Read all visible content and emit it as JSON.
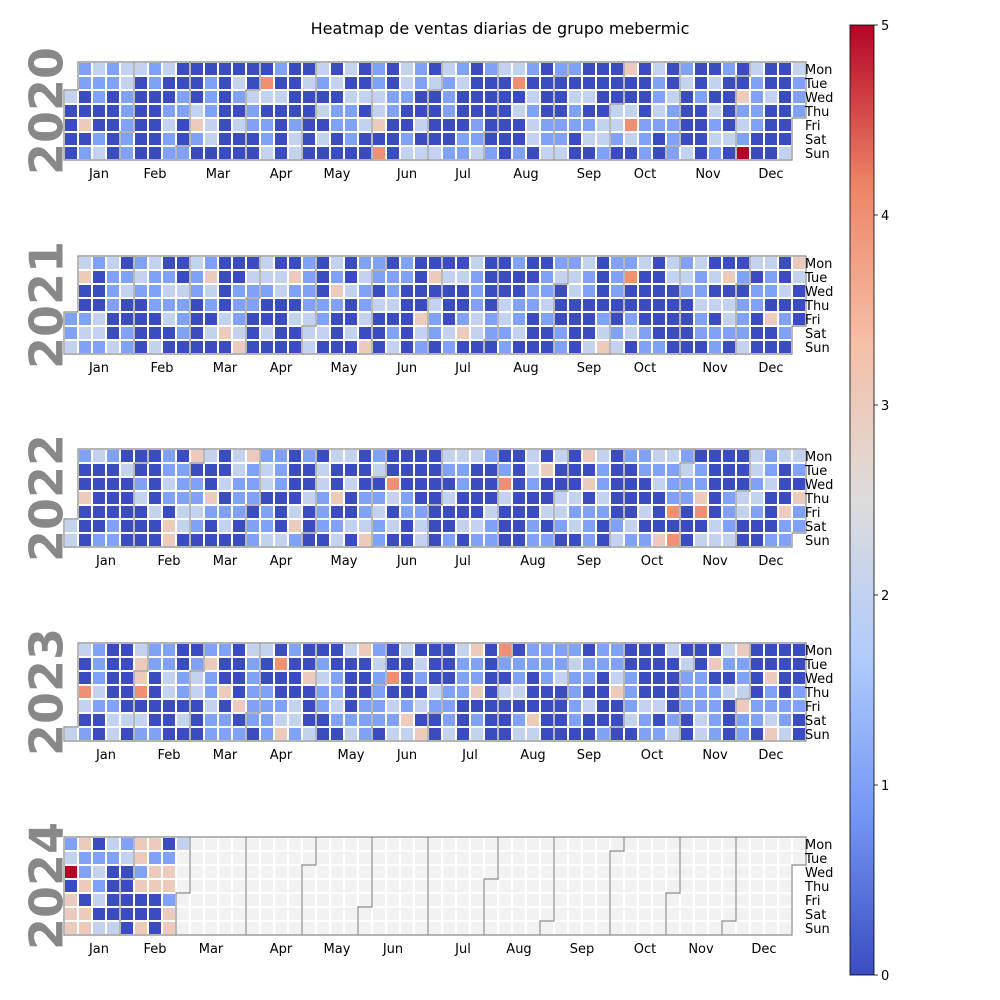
{
  "chart_data": {
    "type": "heatmap",
    "title": "Heatmap de ventas diarias de grupo mebermic",
    "weekday_labels": [
      "Mon",
      "Tue",
      "Wed",
      "Thu",
      "Fri",
      "Sat",
      "Sun"
    ],
    "month_labels": [
      "Jan",
      "Feb",
      "Mar",
      "Apr",
      "May",
      "Jun",
      "Jul",
      "Aug",
      "Sep",
      "Oct",
      "Nov",
      "Dec"
    ],
    "color_scale": {
      "colormap": "coolwarm",
      "vmin": 0,
      "vmax": 5,
      "ticks": [
        "0",
        "1",
        "2",
        "3",
        "4",
        "5"
      ],
      "colors": [
        "#3b4cc0",
        "#7396f5",
        "#b0cbfc",
        "#dddcdc",
        "#f6bfa6",
        "#ed8366",
        "#b40426"
      ]
    },
    "missing_color": "#f2f2f2",
    "grid_on": false,
    "legend_position": "right colorbar",
    "years": [
      {
        "year": "2020",
        "start": "2020-01-01",
        "end": "2020-12-31",
        "notable": {
          "2020-04-07": 4,
          "2020-06-07": 4,
          "2020-08-11": 4,
          "2020-10-09": 4,
          "2020-12-06": 5,
          "2020-01-10": 3,
          "2020-03-06": 3,
          "2020-06-05": 3,
          "2020-10-05": 3,
          "2020-12-02": 3
        }
      },
      {
        "year": "2021",
        "start": "2021-01-01",
        "end": "2021-12-31",
        "notable": {
          "2021-10-05": 4,
          "2021-01-05": 3,
          "2021-03-09": 3,
          "2021-03-20": 3,
          "2021-03-28": 3,
          "2021-04-20": 3,
          "2021-05-12": 3,
          "2021-05-30": 3,
          "2021-06-25": 3,
          "2021-06-29": 3,
          "2021-07-17": 3,
          "2021-09-26": 3,
          "2021-11-23": 3,
          "2021-12-17": 3,
          "2021-12-27": 3
        }
      },
      {
        "year": "2022",
        "start": "2022-01-01",
        "end": "2022-12-31",
        "notable": {
          "2022-06-08": 4,
          "2022-08-03": 4,
          "2022-10-28": 4,
          "2022-10-30": 4,
          "2022-11-11": 4,
          "2022-01-06": 3,
          "2022-02-19": 3,
          "2022-02-20": 3,
          "2022-02-28": 3,
          "2022-03-10": 3,
          "2022-03-28": 3,
          "2022-04-23": 3,
          "2022-05-12": 3,
          "2022-05-29": 3,
          "2022-08-23": 3,
          "2022-09-12": 3,
          "2022-09-14": 3,
          "2022-10-23": 3,
          "2022-11-10": 3,
          "2022-12-23": 3,
          "2022-12-29": 3
        }
      },
      {
        "year": "2023",
        "start": "2023-01-01",
        "end": "2023-12-31",
        "notable": {
          "2023-01-05": 4,
          "2023-02-02": 4,
          "2023-04-11": 4,
          "2023-06-07": 4,
          "2023-07-31": 4,
          "2023-01-31": 3,
          "2023-02-01": 3,
          "2023-03-07": 3,
          "2023-03-16": 3,
          "2023-03-24": 3,
          "2023-04-16": 3,
          "2023-04-26": 3,
          "2023-05-22": 3,
          "2023-06-17": 3,
          "2023-06-25": 3,
          "2023-07-17": 3,
          "2023-07-20": 3,
          "2023-08-19": 3,
          "2023-09-28": 3,
          "2023-11-14": 3,
          "2023-11-27": 3,
          "2023-12-01": 3,
          "2023-12-13": 3,
          "2023-12-17": 3
        }
      },
      {
        "year": "2024",
        "start": "2024-01-01",
        "end": "2024-12-31",
        "data_until": "2024-02-26",
        "notable": {
          "2024-01-03": 5,
          "2024-01-05": 3,
          "2024-01-06": 3,
          "2024-01-07": 3,
          "2024-01-08": 3,
          "2024-01-11": 3,
          "2024-01-13": 3,
          "2024-01-14": 3,
          "2024-02-05": 3,
          "2024-02-06": 3,
          "2024-02-08": 3,
          "2024-02-11": 3,
          "2024-02-12": 3,
          "2024-02-14": 3,
          "2024-02-15": 3,
          "2024-02-21": 3,
          "2024-02-22": 3,
          "2024-02-24": 3,
          "2024-02-25": 3
        }
      }
    ]
  }
}
